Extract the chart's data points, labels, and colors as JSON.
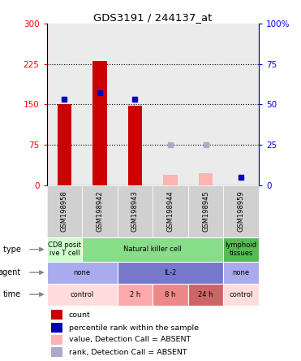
{
  "title": "GDS3191 / 244137_at",
  "samples": [
    "GSM198958",
    "GSM198942",
    "GSM198943",
    "GSM198944",
    "GSM198945",
    "GSM198959"
  ],
  "count_values": [
    150,
    230,
    147,
    0,
    0,
    0
  ],
  "count_absent_values": [
    0,
    0,
    0,
    20,
    22,
    0
  ],
  "percentile_values": [
    53,
    57,
    53,
    0,
    0,
    5
  ],
  "percentile_absent_values": [
    0,
    0,
    0,
    25,
    25,
    0
  ],
  "count_color": "#cc0000",
  "count_absent_color": "#ffb3b3",
  "percentile_color": "#0000bb",
  "percentile_absent_color": "#aaaacc",
  "ylim_left": [
    0,
    300
  ],
  "ylim_right": [
    0,
    100
  ],
  "yticks_left": [
    0,
    75,
    150,
    225,
    300
  ],
  "yticks_right": [
    0,
    25,
    50,
    75,
    100
  ],
  "cell_types": [
    {
      "label": "CD8 posit\nive T cell",
      "span": [
        0,
        1
      ],
      "color": "#ccffcc"
    },
    {
      "label": "Natural killer cell",
      "span": [
        1,
        5
      ],
      "color": "#88dd88"
    },
    {
      "label": "lymphoid\ntissues",
      "span": [
        5,
        6
      ],
      "color": "#55bb55"
    }
  ],
  "agents": [
    {
      "label": "none",
      "span": [
        0,
        2
      ],
      "color": "#aaaaee"
    },
    {
      "label": "IL-2",
      "span": [
        2,
        5
      ],
      "color": "#7777cc"
    },
    {
      "label": "none",
      "span": [
        5,
        6
      ],
      "color": "#aaaaee"
    }
  ],
  "times": [
    {
      "label": "control",
      "span": [
        0,
        2
      ],
      "color": "#ffdddd"
    },
    {
      "label": "2 h",
      "span": [
        2,
        3
      ],
      "color": "#ffaaaa"
    },
    {
      "label": "8 h",
      "span": [
        3,
        4
      ],
      "color": "#ee8888"
    },
    {
      "label": "24 h",
      "span": [
        4,
        5
      ],
      "color": "#cc6666"
    },
    {
      "label": "control",
      "span": [
        5,
        6
      ],
      "color": "#ffdddd"
    }
  ],
  "legend_items": [
    {
      "color": "#cc0000",
      "label": "count"
    },
    {
      "color": "#0000bb",
      "label": "percentile rank within the sample"
    },
    {
      "color": "#ffb3b3",
      "label": "value, Detection Call = ABSENT"
    },
    {
      "color": "#aaaacc",
      "label": "rank, Detection Call = ABSENT"
    }
  ],
  "row_labels": [
    "cell type",
    "agent",
    "time"
  ],
  "background_color": "#ffffff",
  "sample_area_color": "#d0d0d0"
}
